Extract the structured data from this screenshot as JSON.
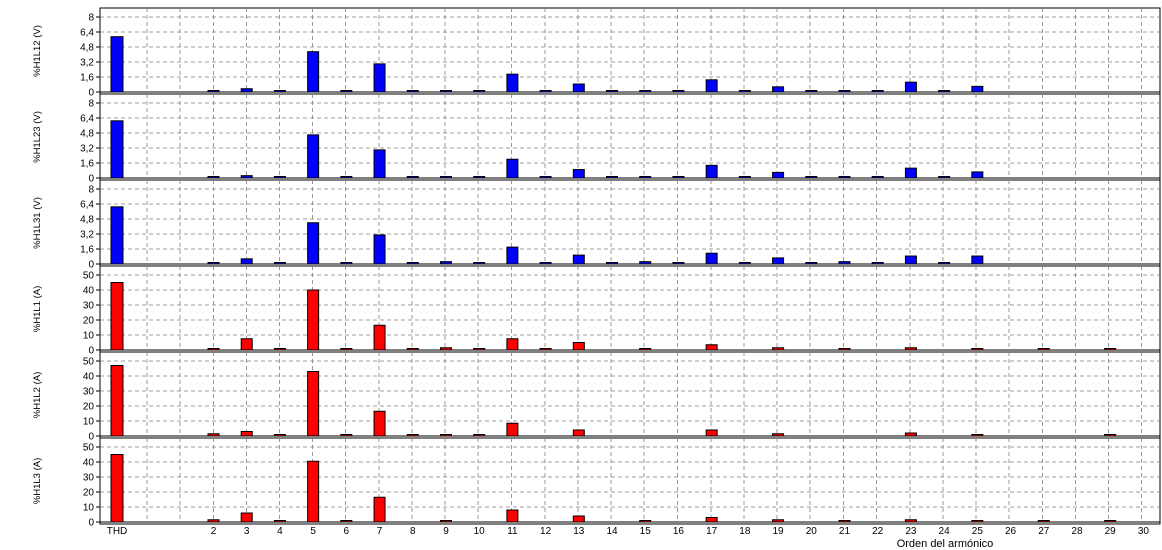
{
  "chart_data": [
    {
      "type": "bar",
      "ylabel": "%H1L12 (V)",
      "ylim": [
        0,
        8
      ],
      "yticks": [
        "0",
        "1,6",
        "3,2",
        "4,8",
        "6,4",
        "8"
      ],
      "color": "#0000ff",
      "categories": [
        "THD",
        "2",
        "3",
        "4",
        "5",
        "6",
        "7",
        "8",
        "9",
        "10",
        "11",
        "12",
        "13",
        "14",
        "15",
        "16",
        "17",
        "18",
        "19",
        "20",
        "21",
        "22",
        "23",
        "24",
        "25",
        "26",
        "27",
        "28",
        "29",
        "30"
      ],
      "values": [
        5.9,
        0.1,
        0.35,
        0.05,
        4.3,
        0.05,
        3.0,
        0.05,
        0.15,
        0.05,
        1.9,
        0.05,
        0.85,
        0.05,
        0.15,
        0.05,
        1.3,
        0.05,
        0.55,
        0.05,
        0.15,
        0.05,
        1.05,
        0.05,
        0.6,
        0,
        0,
        0,
        0,
        0
      ]
    },
    {
      "type": "bar",
      "ylabel": "%H1L23 (V)",
      "ylim": [
        0,
        8
      ],
      "yticks": [
        "0",
        "1,6",
        "3,2",
        "4,8",
        "6,4",
        "8"
      ],
      "color": "#0000ff",
      "categories": [
        "THD",
        "2",
        "3",
        "4",
        "5",
        "6",
        "7",
        "8",
        "9",
        "10",
        "11",
        "12",
        "13",
        "14",
        "15",
        "16",
        "17",
        "18",
        "19",
        "20",
        "21",
        "22",
        "23",
        "24",
        "25",
        "26",
        "27",
        "28",
        "29",
        "30"
      ],
      "values": [
        6.1,
        0.15,
        0.25,
        0.05,
        4.6,
        0.05,
        3.0,
        0.05,
        0.05,
        0.05,
        2.0,
        0.05,
        0.9,
        0.05,
        0.05,
        0.05,
        1.35,
        0.05,
        0.6,
        0.05,
        0.05,
        0.05,
        1.05,
        0.05,
        0.65,
        0,
        0,
        0,
        0,
        0
      ]
    },
    {
      "type": "bar",
      "ylabel": "%H1L31 (V)",
      "ylim": [
        0,
        8
      ],
      "yticks": [
        "0",
        "1,6",
        "3,2",
        "4,8",
        "6,4",
        "8"
      ],
      "color": "#0000ff",
      "categories": [
        "THD",
        "2",
        "3",
        "4",
        "5",
        "6",
        "7",
        "8",
        "9",
        "10",
        "11",
        "12",
        "13",
        "14",
        "15",
        "16",
        "17",
        "18",
        "19",
        "20",
        "21",
        "22",
        "23",
        "24",
        "25",
        "26",
        "27",
        "28",
        "29",
        "30"
      ],
      "values": [
        6.1,
        0.15,
        0.55,
        0.05,
        4.4,
        0.05,
        3.1,
        0.05,
        0.25,
        0.05,
        1.8,
        0.05,
        0.95,
        0.05,
        0.25,
        0.05,
        1.15,
        0.05,
        0.65,
        0.05,
        0.25,
        0.05,
        0.85,
        0.05,
        0.85,
        0,
        0,
        0,
        0,
        0
      ]
    },
    {
      "type": "bar",
      "ylabel": "%H1L1 (A)",
      "ylim": [
        0,
        50
      ],
      "yticks": [
        "0",
        "10",
        "20",
        "30",
        "40",
        "50"
      ],
      "color": "#ff0000",
      "categories": [
        "THD",
        "2",
        "3",
        "4",
        "5",
        "6",
        "7",
        "8",
        "9",
        "10",
        "11",
        "12",
        "13",
        "14",
        "15",
        "16",
        "17",
        "18",
        "19",
        "20",
        "21",
        "22",
        "23",
        "24",
        "25",
        "26",
        "27",
        "28",
        "29",
        "30"
      ],
      "values": [
        45,
        1,
        7.5,
        0.5,
        40,
        0.5,
        16.5,
        0.3,
        1.5,
        0.3,
        7.5,
        0.3,
        5,
        0,
        0.5,
        0,
        3.5,
        0,
        1.5,
        0,
        0.5,
        0,
        1.5,
        0,
        1,
        0,
        0.3,
        0,
        1,
        0
      ]
    },
    {
      "type": "bar",
      "ylabel": "%H1L2 (A)",
      "ylim": [
        0,
        50
      ],
      "yticks": [
        "0",
        "10",
        "20",
        "30",
        "40",
        "50"
      ],
      "color": "#ff0000",
      "categories": [
        "THD",
        "2",
        "3",
        "4",
        "5",
        "6",
        "7",
        "8",
        "9",
        "10",
        "11",
        "12",
        "13",
        "14",
        "15",
        "16",
        "17",
        "18",
        "19",
        "20",
        "21",
        "22",
        "23",
        "24",
        "25",
        "26",
        "27",
        "28",
        "29",
        "30"
      ],
      "values": [
        47,
        1.5,
        3,
        0.5,
        43,
        0.5,
        16.5,
        0.3,
        0.5,
        0.3,
        8.5,
        0,
        4,
        0,
        0,
        0,
        4,
        0,
        1.5,
        0,
        0,
        0,
        2,
        0,
        1,
        0,
        0,
        0,
        1,
        0
      ]
    },
    {
      "type": "bar",
      "ylabel": "%H1L3 (A)",
      "ylim": [
        0,
        50
      ],
      "yticks": [
        "0",
        "10",
        "20",
        "30",
        "40",
        "50"
      ],
      "color": "#ff0000",
      "categories": [
        "THD",
        "2",
        "3",
        "4",
        "5",
        "6",
        "7",
        "8",
        "9",
        "10",
        "11",
        "12",
        "13",
        "14",
        "15",
        "16",
        "17",
        "18",
        "19",
        "20",
        "21",
        "22",
        "23",
        "24",
        "25",
        "26",
        "27",
        "28",
        "29",
        "30"
      ],
      "values": [
        45,
        1.5,
        6,
        0.5,
        40.5,
        0.5,
        16.5,
        0,
        1,
        0,
        8,
        0,
        4,
        0,
        0.5,
        0,
        3,
        0,
        1.5,
        0,
        0.5,
        0,
        1.5,
        0,
        1,
        0,
        0.5,
        0,
        1,
        0
      ]
    }
  ],
  "xlabel": "Orden del armónico",
  "x_tick_labels": [
    "THD",
    "2",
    "3",
    "4",
    "5",
    "6",
    "7",
    "8",
    "9",
    "10",
    "11",
    "12",
    "13",
    "14",
    "15",
    "16",
    "17",
    "18",
    "19",
    "20",
    "21",
    "22",
    "23",
    "24",
    "25",
    "26",
    "27",
    "28",
    "29",
    "30"
  ]
}
